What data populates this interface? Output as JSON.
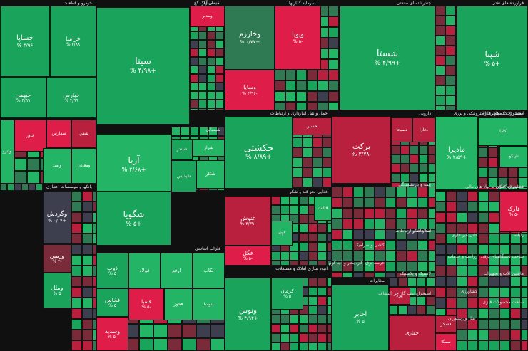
{
  "chart_data": {
    "type": "treemap",
    "title": "",
    "colors": {
      "up_strong": "#1aa35a",
      "up": "#23b465",
      "up_weak": "#2f7a52",
      "flat": "#3d3f4e",
      "down_weak": "#7a2b3a",
      "down": "#b8203e",
      "down_strong": "#de1e48"
    },
    "sectors": [
      {
        "id": "s1",
        "label": "خودرو و قطعات"
      },
      {
        "id": "s2",
        "label": "سیمان آهک گچ"
      },
      {
        "id": "s3",
        "label": "نقشه بازار"
      },
      {
        "id": "s4",
        "label": "سرمایه گذاریها"
      },
      {
        "id": "s5",
        "label": "چندرشته ای صنعتی"
      },
      {
        "id": "s6",
        "label": "فراورده های نفتی"
      },
      {
        "id": "s7",
        "label": "شیمیایی"
      },
      {
        "id": "s8",
        "label": "حمل و نقل انبارداری و ارتباطات"
      },
      {
        "id": "s9",
        "label": "دارویی"
      },
      {
        "id": "s10",
        "label": "محصولات کامپیوتری الکترونیکی و نوری"
      },
      {
        "id": "s11",
        "label": "استخراج کانه های فلزی"
      },
      {
        "id": "s12",
        "label": "بانکها و موسسات اعتباری"
      },
      {
        "id": "s13",
        "label": "غذایی بجز قند و شکر"
      },
      {
        "id": "s14",
        "label": "بیمه و بازنشستگی"
      },
      {
        "id": "s15",
        "label": "فعالیتهای کمکی به نهاد های مالی"
      },
      {
        "id": "s16",
        "label": "محصولات فلزی"
      },
      {
        "id": "s17",
        "label": "فلزات اساسی"
      },
      {
        "id": "s18",
        "label": "کانی غیر فلزی"
      },
      {
        "id": "s19",
        "label": "رایانه"
      },
      {
        "id": "s20",
        "label": "انبوه سازی املاک و مستغلات"
      },
      {
        "id": "s21",
        "label": "مخابرات"
      },
      {
        "id": "s22",
        "label": "لاستیک و پلاستیک"
      },
      {
        "id": "s23",
        "label": "استخراج نفت گاز جز اکتشاف"
      },
      {
        "id": "s24",
        "label": "اطلاعات و ارتباطات"
      },
      {
        "id": "s25",
        "label": "هتل و رستوران"
      },
      {
        "id": "s26",
        "label": "قند و شکر"
      },
      {
        "id": "s27",
        "label": "ماشین آلات و تجهیزات"
      },
      {
        "id": "s28",
        "label": "زراعت و خدمات"
      },
      {
        "id": "s29",
        "label": "کاشی و سرامیک"
      },
      {
        "id": "s30",
        "label": "عرضه برق، گاز، بخار و آب گرم"
      },
      {
        "id": "s31",
        "label": "ساخت دستگاههای برقی"
      },
      {
        "id": "s32",
        "label": "کشاورزی"
      },
      {
        "id": "s33",
        "label": "ساخت محصولات فلزی"
      }
    ],
    "tiles": [
      {
        "symbol": "خساپا",
        "change": "۴/۹۶ %",
        "value": 4.96
      },
      {
        "symbol": "خزامیا",
        "change": "۴/۸۸ %",
        "value": 4.88
      },
      {
        "symbol": "خبهمن",
        "change": "۴/۹۹ %",
        "value": 4.99
      },
      {
        "symbol": "خپارس",
        "change": "۴/۹۹ %",
        "value": 4.99
      },
      {
        "symbol": "سیتا",
        "change": "+۴/۹۸ %",
        "value": 4.98
      },
      {
        "symbol": "وخارزم",
        "change": "+۰/۷۷ %",
        "value": 0.77
      },
      {
        "symbol": "وپویا",
        "change": "-۵ %",
        "value": -5
      },
      {
        "symbol": "وسایا",
        "change": "-۴/۹۶ %",
        "value": -4.96
      },
      {
        "symbol": "شستا",
        "change": "+۴/۹۹ %",
        "value": 4.99
      },
      {
        "symbol": "شپنا",
        "change": "+۵ %",
        "value": 5
      },
      {
        "symbol": "آریا",
        "change": "+۲/۶۸ %",
        "value": 2.68
      },
      {
        "symbol": "شگویا",
        "change": "+۵ %",
        "value": 5
      },
      {
        "symbol": "حکشتی",
        "change": "+۸/۸۹ %",
        "value": 8.89
      },
      {
        "symbol": "برکت",
        "change": "-۳/۷۸ %",
        "value": -3.78
      },
      {
        "symbol": "مادیرا",
        "change": "+۲/۵۹ %",
        "value": 2.59
      },
      {
        "symbol": "وگردش",
        "change": "+۰/۰۴ %",
        "value": 0.04
      },
      {
        "symbol": "وزمین",
        "change": "-۲ %",
        "value": -2
      },
      {
        "symbol": "وملل",
        "change": "۵ %",
        "value": 5
      },
      {
        "symbol": "غنوش",
        "change": "-۳/۳۹ %",
        "value": -3.39
      },
      {
        "symbol": "غگل",
        "change": "-۵ %",
        "value": -5
      },
      {
        "symbol": "فارک",
        "change": "-۵ %",
        "value": -5
      },
      {
        "symbol": "ذوب",
        "change": "۵ %",
        "value": 5
      },
      {
        "symbol": "فخاس",
        "change": "۵ %",
        "value": 5
      },
      {
        "symbol": "فسپا",
        "change": "-۵ %",
        "value": -5
      },
      {
        "symbol": "وسدید",
        "change": "-۵ %",
        "value": -5
      },
      {
        "symbol": "ونوس",
        "change": "+۴/۹۴ %",
        "value": 4.94
      },
      {
        "symbol": "اخابر",
        "change": "۵ %",
        "value": 5
      },
      {
        "symbol": "کرمان",
        "change": "۵ %",
        "value": 5
      },
      {
        "symbol": "وپترو",
        "change": "",
        "value": 4.2
      },
      {
        "symbol": "خاور",
        "change": "",
        "value": -4.6
      },
      {
        "symbol": "سفارس",
        "change": "",
        "value": -4.5
      },
      {
        "symbol": "شفن",
        "change": "",
        "value": -3.2
      },
      {
        "symbol": "وامید",
        "change": "",
        "value": 4.1
      },
      {
        "symbol": "ومعادن",
        "change": "",
        "value": 3.4
      },
      {
        "symbol": "ومدیر",
        "change": "",
        "value": -4.7
      },
      {
        "symbol": "شبندر",
        "change": "",
        "value": 4.6
      },
      {
        "symbol": "شراز",
        "change": "",
        "value": 3.5
      },
      {
        "symbol": "کاما",
        "change": "",
        "value": 4.3
      },
      {
        "symbol": "شپدیس",
        "change": "",
        "value": 4.9
      },
      {
        "symbol": "شکلر",
        "change": "",
        "value": 3.3
      },
      {
        "symbol": "حسیر",
        "change": "",
        "value": -4.1
      },
      {
        "symbol": "دسبحا",
        "change": "",
        "value": -4.2
      },
      {
        "symbol": "دفارا",
        "change": "",
        "value": -3.6
      },
      {
        "symbol": "قثابت",
        "change": "",
        "value": 4.2
      },
      {
        "symbol": "کچاد",
        "change": "",
        "value": 3.7
      },
      {
        "symbol": "فولاد",
        "change": "",
        "value": 4.4
      },
      {
        "symbol": "ارفع",
        "change": "",
        "value": 3.6
      },
      {
        "symbol": "تاپیکو",
        "change": "",
        "value": 4.0
      },
      {
        "symbol": "قشکر",
        "change": "",
        "value": -4.0
      },
      {
        "symbol": "سمگا",
        "change": "",
        "value": -4.9
      },
      {
        "symbol": "حفاری",
        "change": "",
        "value": -4.0
      },
      {
        "symbol": "پیزد",
        "change": "",
        "value": -4.3
      },
      {
        "symbol": "بکاب",
        "change": "",
        "value": 3.8
      },
      {
        "symbol": "ثنوسا",
        "change": "",
        "value": 3.9
      },
      {
        "symbol": "فخوز",
        "change": "",
        "value": 4.0
      }
    ]
  }
}
